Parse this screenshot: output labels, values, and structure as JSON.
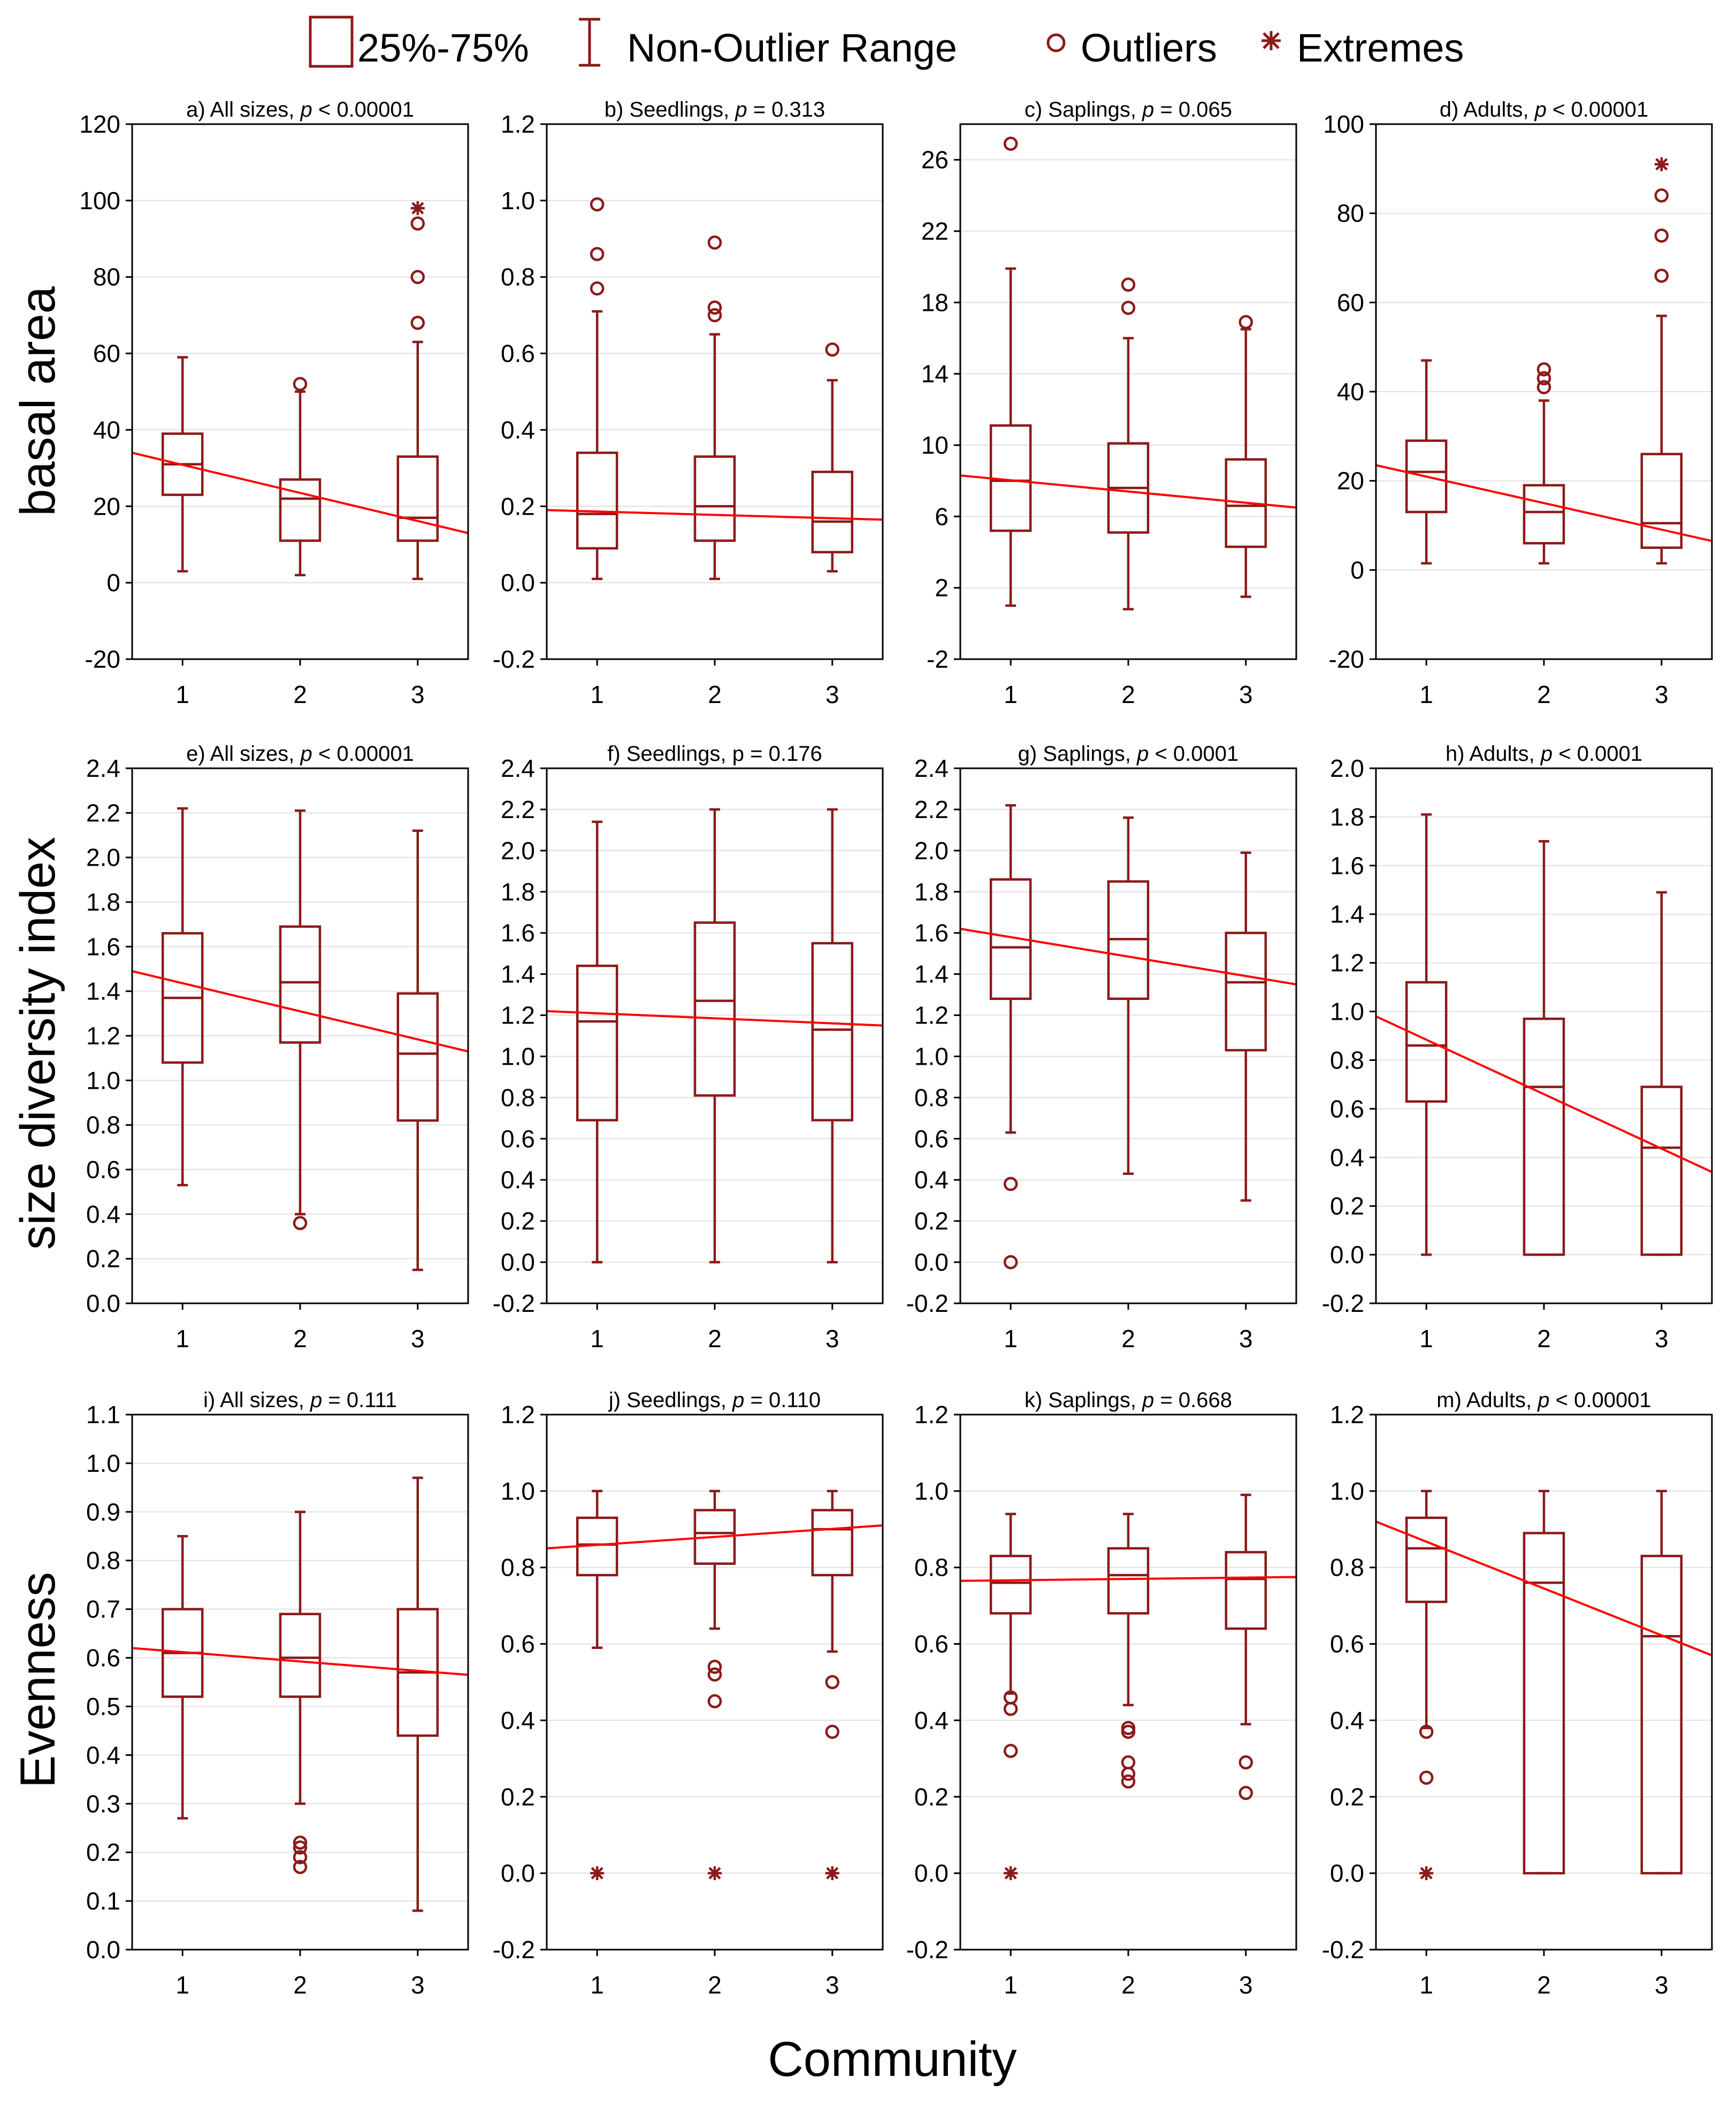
{
  "legend": {
    "box_label": "25%-75%",
    "whisker_label": "Non-Outlier Range",
    "outlier_label": "Outliers",
    "extreme_label": "Extremes"
  },
  "colors": {
    "box": "#8b1a1a",
    "trend": "#ff0000",
    "grid": "#e0e0e0",
    "frame": "#000000"
  },
  "xlabel": "Community",
  "rows": [
    {
      "label": "basal area"
    },
    {
      "label": "size diversity index"
    },
    {
      "label": "Evenness"
    }
  ],
  "chart_data": [
    {
      "type": "box",
      "title_prefix": "a) All sizes, ",
      "p_symbol": "p",
      "p_rel": " < 0.00001",
      "ylim": [
        -20,
        120
      ],
      "yticks": [
        -20,
        0,
        20,
        40,
        60,
        80,
        100,
        120
      ],
      "tick_labels": [
        "-20",
        "0",
        "20",
        "40",
        "60",
        "80",
        "100",
        "120"
      ],
      "categories": [
        "1",
        "2",
        "3"
      ],
      "boxes": [
        {
          "low": 3,
          "q1": 23,
          "median": 31,
          "q3": 39,
          "high": 59,
          "outliers": [],
          "extremes": []
        },
        {
          "low": 2,
          "q1": 11,
          "median": 22,
          "q3": 27,
          "high": 50,
          "outliers": [
            52
          ],
          "extremes": []
        },
        {
          "low": 1,
          "q1": 11,
          "median": 17,
          "q3": 33,
          "high": 63,
          "outliers": [
            68,
            80,
            94
          ],
          "extremes": [
            98
          ]
        }
      ],
      "trend": [
        34,
        13
      ]
    },
    {
      "type": "box",
      "title_prefix": "b) Seedlings, ",
      "p_symbol": "p",
      "p_rel": " = 0.313",
      "ylim": [
        -0.2,
        1.2
      ],
      "yticks": [
        -0.2,
        0,
        0.2,
        0.4,
        0.6,
        0.8,
        1,
        1.2
      ],
      "tick_labels": [
        "-0.2",
        "0.0",
        "0.2",
        "0.4",
        "0.6",
        "0.8",
        "1.0",
        "1.2"
      ],
      "categories": [
        "1",
        "2",
        "3"
      ],
      "boxes": [
        {
          "low": 0.01,
          "q1": 0.09,
          "median": 0.18,
          "q3": 0.34,
          "high": 0.71,
          "outliers": [
            0.77,
            0.86,
            0.99
          ],
          "extremes": []
        },
        {
          "low": 0.01,
          "q1": 0.11,
          "median": 0.2,
          "q3": 0.33,
          "high": 0.65,
          "outliers": [
            0.7,
            0.72,
            0.89
          ],
          "extremes": []
        },
        {
          "low": 0.03,
          "q1": 0.08,
          "median": 0.16,
          "q3": 0.29,
          "high": 0.53,
          "outliers": [
            0.61
          ],
          "extremes": []
        }
      ],
      "trend": [
        0.19,
        0.165
      ]
    },
    {
      "type": "box",
      "title_prefix": "c) Saplings, ",
      "p_symbol": "p",
      "p_rel": " = 0.065",
      "ylim": [
        -2,
        28
      ],
      "yticks": [
        -2,
        2,
        6,
        10,
        14,
        18,
        22,
        26
      ],
      "tick_labels": [
        "-2",
        "2",
        "6",
        "10",
        "14",
        "18",
        "22",
        "26"
      ],
      "categories": [
        "1",
        "2",
        "3"
      ],
      "boxes": [
        {
          "low": 1,
          "q1": 5.2,
          "median": 8,
          "q3": 11.1,
          "high": 19.9,
          "outliers": [
            26.9
          ],
          "extremes": []
        },
        {
          "low": 0.8,
          "q1": 5.1,
          "median": 7.6,
          "q3": 10.1,
          "high": 16,
          "outliers": [
            17.7,
            19
          ],
          "extremes": []
        },
        {
          "low": 1.5,
          "q1": 4.3,
          "median": 6.6,
          "q3": 9.2,
          "high": 16.5,
          "outliers": [
            16.9
          ],
          "extremes": []
        }
      ],
      "trend": [
        8.3,
        6.5
      ]
    },
    {
      "type": "box",
      "title_prefix": "d) Adults, ",
      "p_symbol": "p",
      "p_rel": " < 0.00001",
      "ylim": [
        -20,
        100
      ],
      "yticks": [
        -20,
        0,
        20,
        40,
        60,
        80,
        100
      ],
      "tick_labels": [
        "-20",
        "0",
        "20",
        "40",
        "60",
        "80",
        "100"
      ],
      "categories": [
        "1",
        "2",
        "3"
      ],
      "boxes": [
        {
          "low": 1.5,
          "q1": 13,
          "median": 22,
          "q3": 29,
          "high": 47,
          "outliers": [],
          "extremes": []
        },
        {
          "low": 1.5,
          "q1": 6,
          "median": 13,
          "q3": 19,
          "high": 38,
          "outliers": [
            41,
            43,
            45
          ],
          "extremes": []
        },
        {
          "low": 1.5,
          "q1": 5,
          "median": 10.5,
          "q3": 26,
          "high": 57,
          "outliers": [
            66,
            75,
            84
          ],
          "extremes": [
            91
          ]
        }
      ],
      "trend": [
        23.5,
        6.5
      ]
    },
    {
      "type": "box",
      "title_prefix": "e) All sizes, ",
      "p_symbol": "p",
      "p_rel": " < 0.00001",
      "ylim": [
        0,
        2.4
      ],
      "yticks": [
        0,
        0.2,
        0.4,
        0.6,
        0.8,
        1,
        1.2,
        1.4,
        1.6,
        1.8,
        2,
        2.2,
        2.4
      ],
      "tick_labels": [
        "0.0",
        "0.2",
        "0.4",
        "0.6",
        "0.8",
        "1.0",
        "1.2",
        "1.4",
        "1.6",
        "1.8",
        "2.0",
        "2.2",
        "2.4"
      ],
      "categories": [
        "1",
        "2",
        "3"
      ],
      "boxes": [
        {
          "low": 0.53,
          "q1": 1.08,
          "median": 1.37,
          "q3": 1.66,
          "high": 2.22,
          "outliers": [],
          "extremes": []
        },
        {
          "low": 0.4,
          "q1": 1.17,
          "median": 1.44,
          "q3": 1.69,
          "high": 2.21,
          "outliers": [
            0.36
          ],
          "extremes": []
        },
        {
          "low": 0.15,
          "q1": 0.82,
          "median": 1.12,
          "q3": 1.39,
          "high": 2.12,
          "outliers": [],
          "extremes": []
        }
      ],
      "trend": [
        1.49,
        1.13
      ]
    },
    {
      "type": "box",
      "title_prefix": "f) Seedlings, ",
      "p_symbol": "",
      "p_rel": "p = 0.176",
      "ylim": [
        -0.2,
        2.4
      ],
      "yticks": [
        -0.2,
        0,
        0.2,
        0.4,
        0.6,
        0.8,
        1,
        1.2,
        1.4,
        1.6,
        1.8,
        2,
        2.2,
        2.4
      ],
      "tick_labels": [
        "-0.2",
        "0.0",
        "0.2",
        "0.4",
        "0.6",
        "0.8",
        "1.0",
        "1.2",
        "1.4",
        "1.6",
        "1.8",
        "2.0",
        "2.2",
        "2.4"
      ],
      "categories": [
        "1",
        "2",
        "3"
      ],
      "boxes": [
        {
          "low": 0,
          "q1": 0.69,
          "median": 1.17,
          "q3": 1.44,
          "high": 2.14,
          "outliers": [],
          "extremes": []
        },
        {
          "low": 0,
          "q1": 0.81,
          "median": 1.27,
          "q3": 1.65,
          "high": 2.2,
          "outliers": [],
          "extremes": []
        },
        {
          "low": 0,
          "q1": 0.69,
          "median": 1.13,
          "q3": 1.55,
          "high": 2.2,
          "outliers": [],
          "extremes": []
        }
      ],
      "trend": [
        1.22,
        1.15
      ]
    },
    {
      "type": "box",
      "title_prefix": "g) Saplings, ",
      "p_symbol": "p",
      "p_rel": " < 0.0001",
      "ylim": [
        -0.2,
        2.4
      ],
      "yticks": [
        -0.2,
        0,
        0.2,
        0.4,
        0.6,
        0.8,
        1,
        1.2,
        1.4,
        1.6,
        1.8,
        2,
        2.2,
        2.4
      ],
      "tick_labels": [
        "-0.2",
        "0.0",
        "0.2",
        "0.4",
        "0.6",
        "0.8",
        "1.0",
        "1.2",
        "1.4",
        "1.6",
        "1.8",
        "2.0",
        "2.2",
        "2.4"
      ],
      "categories": [
        "1",
        "2",
        "3"
      ],
      "boxes": [
        {
          "low": 0.63,
          "q1": 1.28,
          "median": 1.53,
          "q3": 1.86,
          "high": 2.22,
          "outliers": [
            0,
            0.38
          ],
          "extremes": []
        },
        {
          "low": 0.43,
          "q1": 1.28,
          "median": 1.57,
          "q3": 1.85,
          "high": 2.16,
          "outliers": [],
          "extremes": []
        },
        {
          "low": 0.3,
          "q1": 1.03,
          "median": 1.36,
          "q3": 1.6,
          "high": 1.99,
          "outliers": [],
          "extremes": []
        }
      ],
      "trend": [
        1.62,
        1.35
      ]
    },
    {
      "type": "box",
      "title_prefix": "h) Adults, ",
      "p_symbol": "p",
      "p_rel": " < 0.0001",
      "ylim": [
        -0.2,
        2.0
      ],
      "yticks": [
        -0.2,
        0,
        0.2,
        0.4,
        0.6,
        0.8,
        1,
        1.2,
        1.4,
        1.6,
        1.8,
        2
      ],
      "tick_labels": [
        "-0.2",
        "0.0",
        "0.2",
        "0.4",
        "0.6",
        "0.8",
        "1.0",
        "1.2",
        "1.4",
        "1.6",
        "1.8",
        "2.0"
      ],
      "categories": [
        "1",
        "2",
        "3"
      ],
      "boxes": [
        {
          "low": 0,
          "q1": 0.63,
          "median": 0.86,
          "q3": 1.12,
          "high": 1.81,
          "outliers": [],
          "extremes": []
        },
        {
          "low": 0,
          "q1": 0,
          "median": 0.69,
          "q3": 0.97,
          "high": 1.7,
          "outliers": [],
          "extremes": []
        },
        {
          "low": 0,
          "q1": 0,
          "median": 0.44,
          "q3": 0.69,
          "high": 1.49,
          "outliers": [],
          "extremes": []
        }
      ],
      "trend": [
        0.98,
        0.34
      ]
    },
    {
      "type": "box",
      "title_prefix": "i) All sizes, ",
      "p_symbol": "p",
      "p_rel": " = 0.111",
      "ylim": [
        0,
        1.1
      ],
      "yticks": [
        0,
        0.1,
        0.2,
        0.3,
        0.4,
        0.5,
        0.6,
        0.7,
        0.8,
        0.9,
        1,
        1.1
      ],
      "tick_labels": [
        "0.0",
        "0.1",
        "0.2",
        "0.3",
        "0.4",
        "0.5",
        "0.6",
        "0.7",
        "0.8",
        "0.9",
        "1.0",
        "1.1"
      ],
      "categories": [
        "1",
        "2",
        "3"
      ],
      "boxes": [
        {
          "low": 0.27,
          "q1": 0.52,
          "median": 0.61,
          "q3": 0.7,
          "high": 0.85,
          "outliers": [],
          "extremes": []
        },
        {
          "low": 0.3,
          "q1": 0.52,
          "median": 0.6,
          "q3": 0.69,
          "high": 0.9,
          "outliers": [
            0.17,
            0.19,
            0.21,
            0.22
          ],
          "extremes": []
        },
        {
          "low": 0.08,
          "q1": 0.44,
          "median": 0.57,
          "q3": 0.7,
          "high": 0.97,
          "outliers": [],
          "extremes": []
        }
      ],
      "trend": [
        0.62,
        0.565
      ]
    },
    {
      "type": "box",
      "title_prefix": "j) Seedlings, ",
      "p_symbol": "p",
      "p_rel": " = 0.110",
      "ylim": [
        -0.2,
        1.2
      ],
      "yticks": [
        -0.2,
        0,
        0.2,
        0.4,
        0.6,
        0.8,
        1,
        1.2
      ],
      "tick_labels": [
        "-0.2",
        "0.0",
        "0.2",
        "0.4",
        "0.6",
        "0.8",
        "1.0",
        "1.2"
      ],
      "categories": [
        "1",
        "2",
        "3"
      ],
      "boxes": [
        {
          "low": 0.59,
          "q1": 0.78,
          "median": 0.86,
          "q3": 0.93,
          "high": 1,
          "outliers": [],
          "extremes": [
            0
          ]
        },
        {
          "low": 0.64,
          "q1": 0.81,
          "median": 0.89,
          "q3": 0.95,
          "high": 1,
          "outliers": [
            0.45,
            0.52,
            0.54
          ],
          "extremes": [
            0
          ]
        },
        {
          "low": 0.58,
          "q1": 0.78,
          "median": 0.9,
          "q3": 0.95,
          "high": 1,
          "outliers": [
            0.37,
            0.5
          ],
          "extremes": [
            0
          ]
        }
      ],
      "trend": [
        0.85,
        0.91
      ]
    },
    {
      "type": "box",
      "title_prefix": "k) Saplings, ",
      "p_symbol": "p",
      "p_rel": " = 0.668",
      "ylim": [
        -0.2,
        1.2
      ],
      "yticks": [
        -0.2,
        0,
        0.2,
        0.4,
        0.6,
        0.8,
        1,
        1.2
      ],
      "tick_labels": [
        "-0.2",
        "0.0",
        "0.2",
        "0.4",
        "0.6",
        "0.8",
        "1.0",
        "1.2"
      ],
      "categories": [
        "1",
        "2",
        "3"
      ],
      "boxes": [
        {
          "low": 0.47,
          "q1": 0.68,
          "median": 0.76,
          "q3": 0.83,
          "high": 0.94,
          "outliers": [
            0.32,
            0.43,
            0.46
          ],
          "extremes": [
            0
          ]
        },
        {
          "low": 0.44,
          "q1": 0.68,
          "median": 0.78,
          "q3": 0.85,
          "high": 0.94,
          "outliers": [
            0.24,
            0.26,
            0.29,
            0.37,
            0.38
          ],
          "extremes": []
        },
        {
          "low": 0.39,
          "q1": 0.64,
          "median": 0.77,
          "q3": 0.84,
          "high": 0.99,
          "outliers": [
            0.21,
            0.29
          ],
          "extremes": []
        }
      ],
      "trend": [
        0.765,
        0.775
      ]
    },
    {
      "type": "box",
      "title_prefix": "m) Adults, ",
      "p_symbol": "p",
      "p_rel": " < 0.00001",
      "ylim": [
        -0.2,
        1.2
      ],
      "yticks": [
        -0.2,
        0,
        0.2,
        0.4,
        0.6,
        0.8,
        1,
        1.2
      ],
      "tick_labels": [
        "-0.2",
        "0.0",
        "0.2",
        "0.4",
        "0.6",
        "0.8",
        "1.0",
        "1.2"
      ],
      "categories": [
        "1",
        "2",
        "3"
      ],
      "boxes": [
        {
          "low": 0.38,
          "q1": 0.71,
          "median": 0.85,
          "q3": 0.93,
          "high": 1,
          "outliers": [
            0.25,
            0.37
          ],
          "extremes": [
            0
          ]
        },
        {
          "low": 0,
          "q1": 0,
          "median": 0.76,
          "q3": 0.89,
          "high": 1,
          "outliers": [],
          "extremes": []
        },
        {
          "low": 0,
          "q1": 0,
          "median": 0.62,
          "q3": 0.83,
          "high": 1,
          "outliers": [],
          "extremes": []
        }
      ],
      "trend": [
        0.92,
        0.57
      ]
    }
  ]
}
